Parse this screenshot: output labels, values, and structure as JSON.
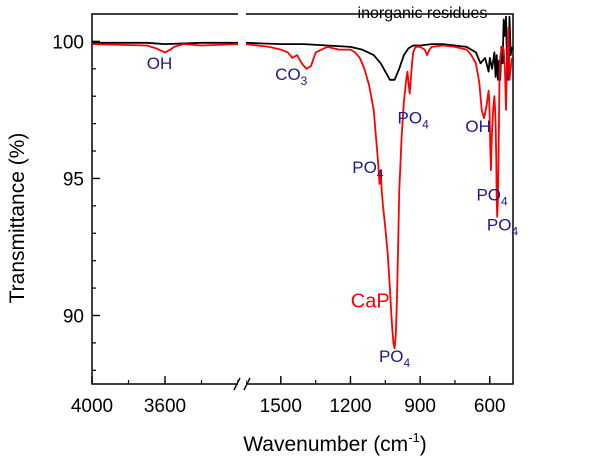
{
  "chart_data": {
    "type": "line",
    "title": "",
    "xlabel": "Wavenumber (cm",
    "xlabel_sup": "-1",
    "xlabel_end": ")",
    "ylabel": "Transmittance (%)",
    "ylim": [
      87.5,
      101
    ],
    "x_axis_reversed": true,
    "x_axis_break": true,
    "x_segment_1": {
      "range": [
        4000,
        3200
      ],
      "ticks": [
        4000,
        3600
      ]
    },
    "x_segment_2": {
      "range": [
        1650,
        500
      ],
      "ticks": [
        1500,
        1200,
        900,
        600
      ]
    },
    "y_ticks": [
      90,
      95,
      100
    ],
    "grid": false,
    "series": [
      {
        "name": "inorganic residues",
        "color": "#000000",
        "x": [
          4000,
          3700,
          3600,
          3400,
          3200,
          1650,
          1500,
          1400,
          1300,
          1200,
          1150,
          1100,
          1070,
          1050,
          1030,
          1010,
          990,
          970,
          950,
          930,
          900,
          850,
          800,
          750,
          700,
          660,
          640,
          620,
          605,
          600,
          590,
          580,
          575,
          570,
          565,
          560,
          555,
          550,
          545,
          540,
          535,
          530,
          525,
          520,
          515,
          510,
          505
        ],
        "y": [
          99.95,
          99.95,
          99.9,
          99.95,
          99.95,
          99.95,
          99.9,
          99.9,
          99.85,
          99.8,
          99.7,
          99.5,
          99.2,
          98.9,
          98.6,
          98.6,
          99.0,
          99.5,
          99.75,
          99.85,
          99.85,
          99.9,
          99.9,
          99.85,
          99.8,
          99.6,
          99.2,
          99.4,
          98.9,
          99.4,
          99.0,
          99.6,
          98.7,
          99.5,
          98.6,
          99.3,
          98.6,
          99.8,
          99.2,
          100.8,
          100.2,
          100.9,
          99.0,
          98.6,
          100.9,
          99.5,
          99.8
        ]
      },
      {
        "name": "CaP",
        "color": "#ff0000",
        "x": [
          4000,
          3700,
          3650,
          3600,
          3570,
          3550,
          3500,
          3400,
          3200,
          1650,
          1550,
          1500,
          1470,
          1450,
          1430,
          1410,
          1390,
          1370,
          1350,
          1300,
          1250,
          1200,
          1180,
          1160,
          1140,
          1120,
          1100,
          1090,
          1080,
          1075,
          1070,
          1065,
          1060,
          1050,
          1040,
          1030,
          1025,
          1020,
          1015,
          1010,
          1005,
          1000,
          995,
          990,
          980,
          970,
          960,
          955,
          950,
          945,
          940,
          935,
          930,
          920,
          900,
          880,
          870,
          860,
          850,
          800,
          750,
          700,
          680,
          660,
          645,
          635,
          625,
          615,
          605,
          602,
          600,
          598,
          595,
          590,
          585,
          580,
          577,
          575,
          572,
          570,
          568,
          565,
          562,
          560,
          558,
          555,
          550,
          545,
          540,
          535,
          530,
          525,
          520,
          515,
          510,
          505
        ],
        "y": [
          99.9,
          99.85,
          99.75,
          99.6,
          99.7,
          99.8,
          99.9,
          99.85,
          99.9,
          99.9,
          99.8,
          99.7,
          99.6,
          99.4,
          99.5,
          99.2,
          99.0,
          99.1,
          99.6,
          99.8,
          99.7,
          99.7,
          99.6,
          99.4,
          99.0,
          98.4,
          97.5,
          96.5,
          95.5,
          94.8,
          95.3,
          94.5,
          94.0,
          93.2,
          92.3,
          91.0,
          90.2,
          89.5,
          89.0,
          88.8,
          89.3,
          90.5,
          92.5,
          94.5,
          96.5,
          97.8,
          98.6,
          98.9,
          98.5,
          98.1,
          98.6,
          99.2,
          99.6,
          99.8,
          99.8,
          99.7,
          99.5,
          99.7,
          99.8,
          99.85,
          99.8,
          99.7,
          99.5,
          99.2,
          98.5,
          97.5,
          97.2,
          97.6,
          98.2,
          97.8,
          97.0,
          96.2,
          95.3,
          96.8,
          97.6,
          98.0,
          97.5,
          97.0,
          95.6,
          94.2,
          93.6,
          94.2,
          96.0,
          97.5,
          98.6,
          99.4,
          99.7,
          99.8,
          99.7,
          99.0,
          97.5,
          99.6,
          100.5,
          98.6,
          99.0,
          99.4
        ]
      }
    ],
    "annotations": [
      {
        "text": "OH",
        "sub": "",
        "seg": 1,
        "x": 3630,
        "y": 99.0
      },
      {
        "text": "CO",
        "sub": "3",
        "seg": 2,
        "x": 1455,
        "y": 98.6
      },
      {
        "text": "PO",
        "sub": "4",
        "seg": 2,
        "x": 930,
        "y": 97.0
      },
      {
        "text": "OH",
        "sub": "",
        "seg": 2,
        "x": 650,
        "y": 96.7
      },
      {
        "text": "PO",
        "sub": "4",
        "seg": 2,
        "x": 1125,
        "y": 95.2
      },
      {
        "text": "PO",
        "sub": "4",
        "seg": 2,
        "x": 590,
        "y": 94.2
      },
      {
        "text": "PO",
        "sub": "4",
        "seg": 2,
        "x": 545,
        "y": 93.1
      },
      {
        "text": "PO",
        "sub": "4",
        "seg": 2,
        "x": 1010,
        "y": 88.3
      }
    ],
    "series_labels": [
      {
        "text": "CaP",
        "seg": 2,
        "x": 1115,
        "y": 90.3,
        "color": "#ff0000"
      },
      {
        "text": "inorganic residues",
        "seg": 2,
        "x": 890,
        "y": 100.85,
        "color": "#000000"
      }
    ]
  }
}
